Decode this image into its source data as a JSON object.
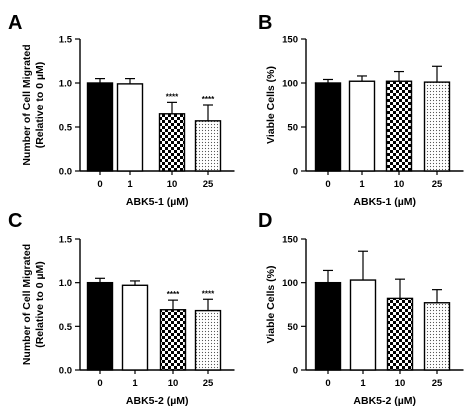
{
  "chart_data": [
    {
      "type": "bar",
      "panel": "A",
      "categories": [
        "0",
        "1",
        "10",
        "25"
      ],
      "values": [
        1.0,
        0.99,
        0.65,
        0.57
      ],
      "errors": [
        0.05,
        0.06,
        0.13,
        0.18
      ],
      "significance": [
        "",
        "",
        "****",
        "****"
      ],
      "fills": [
        "solid",
        "white",
        "checker",
        "dots"
      ],
      "xlabel": "ABK5-1 (µM)",
      "ylabel": "Number of Cell Migrated",
      "ylabel2": "(Relative to 0 µM)",
      "ylim": [
        0,
        1.5
      ],
      "yticks": [
        "0.0",
        "0.5",
        "1.0",
        "1.5"
      ],
      "ytick_values": [
        0,
        0.5,
        1.0,
        1.5
      ]
    },
    {
      "type": "bar",
      "panel": "B",
      "categories": [
        "0",
        "1",
        "10",
        "25"
      ],
      "values": [
        100,
        102,
        102,
        101
      ],
      "errors": [
        4,
        6,
        11,
        18
      ],
      "significance": [
        "",
        "",
        "",
        ""
      ],
      "fills": [
        "solid",
        "white",
        "checker",
        "dots"
      ],
      "xlabel": "ABK5-1 (µM)",
      "ylabel": "Viable Cells (%)",
      "ylabel2": "",
      "ylim": [
        0,
        150
      ],
      "yticks": [
        "0",
        "50",
        "100",
        "150"
      ],
      "ytick_values": [
        0,
        50,
        100,
        150
      ]
    },
    {
      "type": "bar",
      "panel": "C",
      "categories": [
        "0",
        "1",
        "10",
        "25"
      ],
      "values": [
        1.0,
        0.97,
        0.69,
        0.68
      ],
      "errors": [
        0.05,
        0.05,
        0.11,
        0.13
      ],
      "significance": [
        "",
        "",
        "****",
        "****"
      ],
      "fills": [
        "solid",
        "white",
        "checker",
        "dots"
      ],
      "xlabel": "ABK5-2 (µM)",
      "ylabel": "Number of Cell Migrated",
      "ylabel2": "(Relative to 0 µM)",
      "ylim": [
        0,
        1.5
      ],
      "yticks": [
        "0.0",
        "0.5",
        "1.0",
        "1.5"
      ],
      "ytick_values": [
        0,
        0.5,
        1.0,
        1.5
      ]
    },
    {
      "type": "bar",
      "panel": "D",
      "categories": [
        "0",
        "1",
        "10",
        "25"
      ],
      "values": [
        100,
        103,
        82,
        77
      ],
      "errors": [
        14,
        33,
        22,
        15
      ],
      "significance": [
        "",
        "",
        "",
        ""
      ],
      "fills": [
        "solid",
        "white",
        "checker",
        "dots"
      ],
      "xlabel": "ABK5-2 (µM)",
      "ylabel": "Viable Cells (%)",
      "ylabel2": "",
      "ylim": [
        0,
        150
      ],
      "yticks": [
        "0",
        "50",
        "100",
        "150"
      ],
      "ytick_values": [
        0,
        50,
        100,
        150
      ]
    }
  ]
}
